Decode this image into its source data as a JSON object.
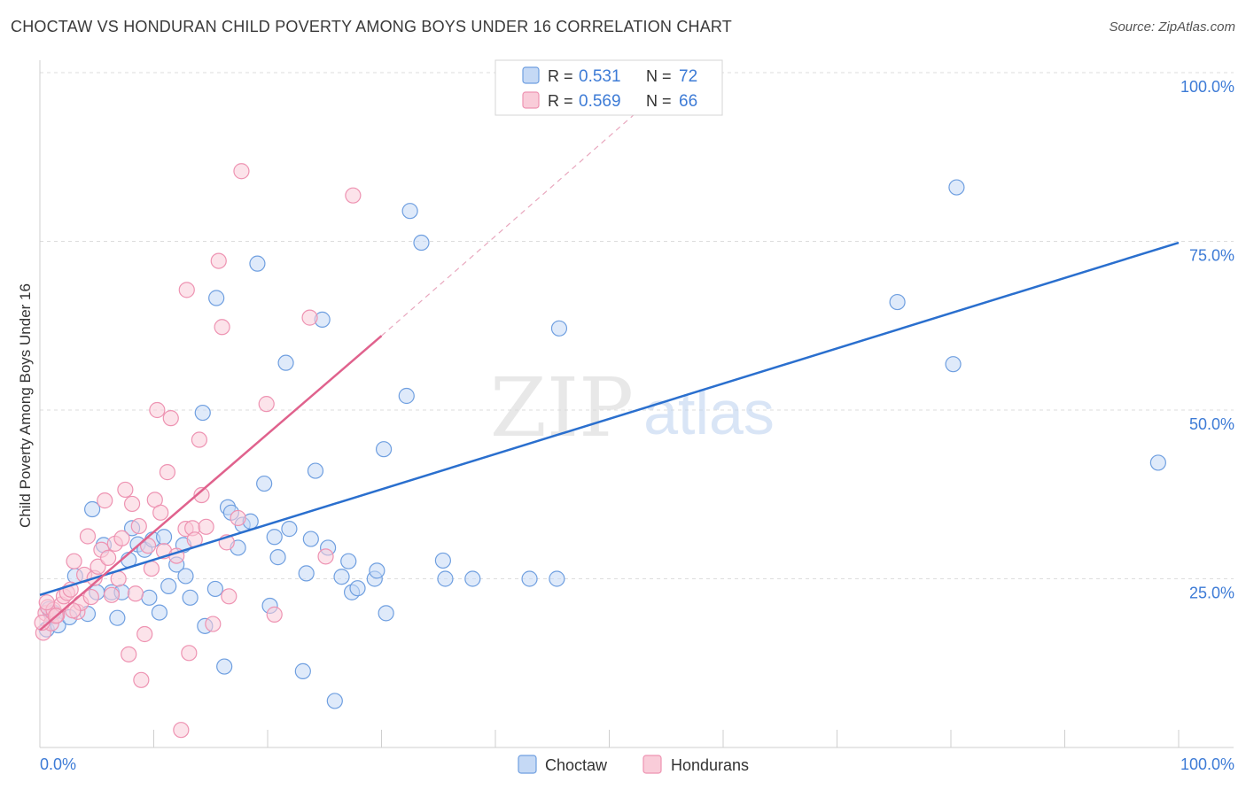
{
  "header": {
    "title": "CHOCTAW VS HONDURAN CHILD POVERTY AMONG BOYS UNDER 16 CORRELATION CHART",
    "source": "Source: ZipAtlas.com"
  },
  "watermark": {
    "zip": "ZIP",
    "atlas": "atlas"
  },
  "legend": {
    "r_label": "R =",
    "n_label": "N =",
    "rows": [
      {
        "r": "0.531",
        "n": "72"
      },
      {
        "r": "0.569",
        "n": "66"
      }
    ]
  },
  "bottom_legend": [
    "Choctaw",
    "Hondurans"
  ],
  "colors": {
    "choctaw_fill": "#c5d9f5",
    "choctaw_stroke": "#6f9fe0",
    "choctaw_line": "#2a6fce",
    "honduran_fill": "#f9ccd9",
    "honduran_stroke": "#ee93b2",
    "honduran_line": "#e0628d",
    "value_text": "#3d7bd6",
    "grid": "#dddddd"
  },
  "chart_data": {
    "type": "scatter",
    "title": "CHOCTAW VS HONDURAN CHILD POVERTY AMONG BOYS UNDER 16 CORRELATION CHART",
    "xlabel": "",
    "ylabel": "Child Poverty Among Boys Under 16",
    "xlim": [
      0,
      100
    ],
    "ylim": [
      0,
      100
    ],
    "x_tick_labels": [
      "0.0%",
      "100.0%"
    ],
    "y_tick_labels": [
      "25.0%",
      "50.0%",
      "75.0%",
      "100.0%"
    ],
    "y_ticks": [
      25,
      50,
      75,
      100
    ],
    "grid": true,
    "series": [
      {
        "name": "Choctaw",
        "r": 0.531,
        "n": 72,
        "trend": {
          "x": [
            0,
            100
          ],
          "y": [
            22.6,
            74.8
          ],
          "dashed_after": null
        },
        "points": [
          [
            0.6,
            17.5
          ],
          [
            0.8,
            20.5
          ],
          [
            1.0,
            19.8
          ],
          [
            1.6,
            18.1
          ],
          [
            2.6,
            19.3
          ],
          [
            3.1,
            25.4
          ],
          [
            4.2,
            19.8
          ],
          [
            4.6,
            35.3
          ],
          [
            5.0,
            23.0
          ],
          [
            5.6,
            30.0
          ],
          [
            6.3,
            23.0
          ],
          [
            6.8,
            19.2
          ],
          [
            7.2,
            23.0
          ],
          [
            7.8,
            27.8
          ],
          [
            8.1,
            32.5
          ],
          [
            8.6,
            30.1
          ],
          [
            9.2,
            29.3
          ],
          [
            9.6,
            22.2
          ],
          [
            9.9,
            30.8
          ],
          [
            10.5,
            20.0
          ],
          [
            10.9,
            31.2
          ],
          [
            11.3,
            23.9
          ],
          [
            12.0,
            27.1
          ],
          [
            12.6,
            30.0
          ],
          [
            12.8,
            25.4
          ],
          [
            13.2,
            22.2
          ],
          [
            14.3,
            49.6
          ],
          [
            14.5,
            18.0
          ],
          [
            15.4,
            23.5
          ],
          [
            15.5,
            66.6
          ],
          [
            16.2,
            12.0
          ],
          [
            16.5,
            35.6
          ],
          [
            16.8,
            34.8
          ],
          [
            17.4,
            29.6
          ],
          [
            17.8,
            33.0
          ],
          [
            18.5,
            33.5
          ],
          [
            19.1,
            71.7
          ],
          [
            19.7,
            39.1
          ],
          [
            20.2,
            21.0
          ],
          [
            20.6,
            31.2
          ],
          [
            20.9,
            28.2
          ],
          [
            21.6,
            57.0
          ],
          [
            21.9,
            32.4
          ],
          [
            23.1,
            11.3
          ],
          [
            23.4,
            25.8
          ],
          [
            23.8,
            30.9
          ],
          [
            24.2,
            41.0
          ],
          [
            24.8,
            63.4
          ],
          [
            25.3,
            29.6
          ],
          [
            25.9,
            6.9
          ],
          [
            26.5,
            25.3
          ],
          [
            27.1,
            27.6
          ],
          [
            27.4,
            23.0
          ],
          [
            27.9,
            23.6
          ],
          [
            29.4,
            25.0
          ],
          [
            29.6,
            26.2
          ],
          [
            30.2,
            44.2
          ],
          [
            30.4,
            19.9
          ],
          [
            32.2,
            52.1
          ],
          [
            32.5,
            79.5
          ],
          [
            33.5,
            74.8
          ],
          [
            35.4,
            27.7
          ],
          [
            35.6,
            25.0
          ],
          [
            38.0,
            25.0
          ],
          [
            45.4,
            25.0
          ],
          [
            45.6,
            62.1
          ],
          [
            75.3,
            66.0
          ],
          [
            80.2,
            56.8
          ],
          [
            80.5,
            83.0
          ],
          [
            98.2,
            42.2
          ],
          [
            43.0,
            25.0
          ],
          [
            1.2,
            20.0
          ]
        ]
      },
      {
        "name": "Hondurans",
        "r": 0.569,
        "n": 66,
        "trend": {
          "x": [
            0,
            30
          ],
          "y": [
            17.4,
            61.0
          ],
          "dashed_to": [
            53.0,
            95.0
          ]
        },
        "points": [
          [
            0.3,
            17.0
          ],
          [
            0.5,
            19.9
          ],
          [
            0.7,
            20.8
          ],
          [
            1.0,
            18.4
          ],
          [
            1.2,
            20.4
          ],
          [
            1.5,
            19.6
          ],
          [
            1.9,
            21.2
          ],
          [
            2.1,
            22.4
          ],
          [
            2.4,
            22.9
          ],
          [
            2.7,
            23.4
          ],
          [
            3.0,
            27.6
          ],
          [
            3.3,
            20.1
          ],
          [
            3.6,
            21.4
          ],
          [
            3.9,
            25.6
          ],
          [
            4.2,
            31.3
          ],
          [
            4.5,
            22.3
          ],
          [
            4.8,
            25.1
          ],
          [
            5.1,
            26.8
          ],
          [
            5.4,
            29.3
          ],
          [
            5.7,
            36.6
          ],
          [
            6.0,
            28.1
          ],
          [
            6.3,
            22.6
          ],
          [
            6.6,
            30.2
          ],
          [
            6.9,
            25.0
          ],
          [
            7.2,
            31.0
          ],
          [
            7.5,
            38.2
          ],
          [
            7.8,
            13.8
          ],
          [
            8.1,
            36.1
          ],
          [
            8.4,
            22.8
          ],
          [
            8.7,
            32.8
          ],
          [
            8.9,
            10.0
          ],
          [
            9.2,
            16.8
          ],
          [
            9.5,
            29.9
          ],
          [
            9.8,
            26.5
          ],
          [
            10.1,
            36.7
          ],
          [
            10.3,
            50.0
          ],
          [
            10.6,
            34.8
          ],
          [
            10.9,
            29.1
          ],
          [
            11.2,
            40.8
          ],
          [
            11.5,
            48.8
          ],
          [
            12.0,
            28.4
          ],
          [
            12.4,
            2.6
          ],
          [
            12.8,
            32.4
          ],
          [
            12.9,
            67.8
          ],
          [
            13.1,
            14.0
          ],
          [
            13.4,
            32.5
          ],
          [
            13.6,
            30.8
          ],
          [
            14.0,
            45.6
          ],
          [
            14.2,
            37.4
          ],
          [
            14.6,
            32.7
          ],
          [
            15.2,
            18.3
          ],
          [
            15.7,
            72.1
          ],
          [
            16.0,
            62.3
          ],
          [
            16.4,
            30.4
          ],
          [
            16.6,
            22.4
          ],
          [
            17.4,
            34.0
          ],
          [
            17.7,
            85.4
          ],
          [
            19.9,
            50.9
          ],
          [
            20.6,
            19.7
          ],
          [
            23.7,
            63.7
          ],
          [
            25.1,
            28.3
          ],
          [
            27.5,
            81.8
          ],
          [
            0.6,
            21.5
          ],
          [
            1.4,
            19.5
          ],
          [
            2.9,
            20.3
          ],
          [
            0.2,
            18.5
          ]
        ]
      }
    ]
  }
}
